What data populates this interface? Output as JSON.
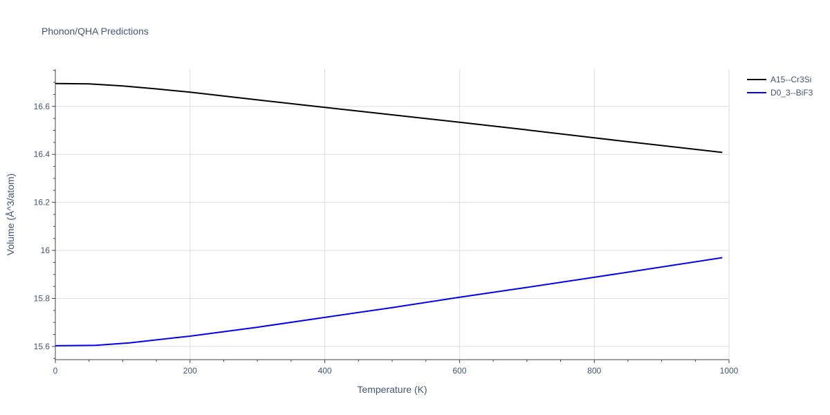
{
  "chart_data": {
    "type": "line",
    "title": "Phonon/QHA Predictions",
    "xlabel": "Temperature (K)",
    "ylabel": "Volume (Å^3/atom)",
    "xlim": [
      0,
      1000
    ],
    "ylim": [
      15.545,
      16.755
    ],
    "xticks": [
      0,
      200,
      400,
      600,
      800,
      1000
    ],
    "xtick_labels": [
      "0",
      "200",
      "400",
      "600",
      "800",
      "1000"
    ],
    "yticks": [
      15.6,
      15.8,
      16.0,
      16.2,
      16.4,
      16.6
    ],
    "ytick_labels": [
      "15.6",
      "15.8",
      "16",
      "16.2",
      "16.4",
      "16.6"
    ],
    "grid": true,
    "legend_position": "top-right",
    "series": [
      {
        "name": "A15--Cr3Si",
        "color": "#000000",
        "x": [
          0,
          50,
          100,
          150,
          200,
          300,
          400,
          500,
          600,
          700,
          800,
          900,
          990
        ],
        "y": [
          16.695,
          16.694,
          16.685,
          16.673,
          16.659,
          16.627,
          16.596,
          16.565,
          16.534,
          16.502,
          16.469,
          16.437,
          16.408
        ]
      },
      {
        "name": "D0_3--BiF3",
        "color": "#0000ee",
        "x": [
          0,
          60,
          110,
          180,
          200,
          300,
          400,
          500,
          600,
          700,
          800,
          900,
          990
        ],
        "y": [
          15.603,
          15.605,
          15.615,
          15.637,
          15.643,
          15.68,
          15.721,
          15.762,
          15.805,
          15.846,
          15.888,
          15.931,
          15.97
        ]
      }
    ]
  }
}
